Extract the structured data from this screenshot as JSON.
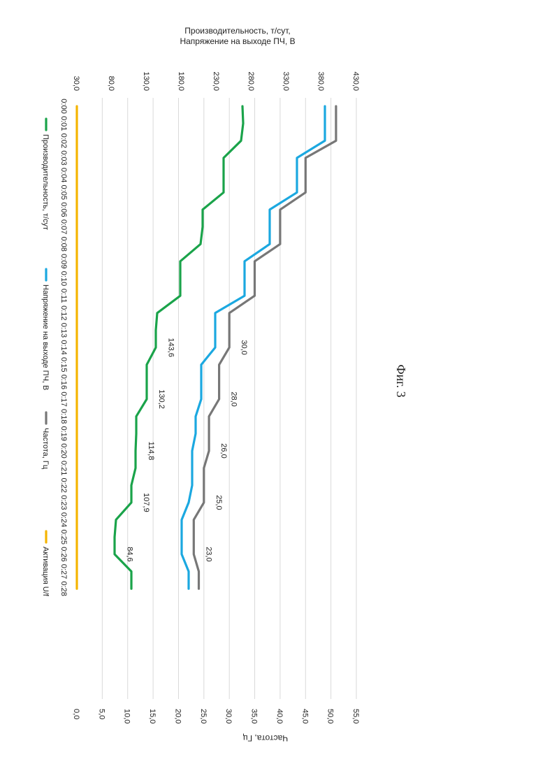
{
  "caption": "Фиг. 3",
  "chart_data": {
    "type": "line",
    "orientation": "rotated 90° clockwise on the page",
    "x": [
      "0:00",
      "0:01",
      "0:02",
      "0:03",
      "0:04",
      "0:05",
      "0:06",
      "0:07",
      "0:08",
      "0:09",
      "0:10",
      "0:11",
      "0:12",
      "0:13",
      "0:14",
      "0:15",
      "0:16",
      "0:17",
      "0:18",
      "0:19",
      "0:20",
      "0:21",
      "0:22",
      "0:23",
      "0:24",
      "0:25",
      "0:26",
      "0:27",
      "0:28"
    ],
    "y_primary": {
      "label": "Производительность, т/сут, Напряжение на выходе ПЧ, В",
      "lim": [
        30,
        430
      ],
      "ticks": [
        "430,0",
        "380,0",
        "330,0",
        "280,0",
        "230,0",
        "180,0",
        "130,0",
        "80,0",
        "30,0"
      ]
    },
    "y_secondary": {
      "label": "Частота, Гц",
      "lim": [
        0,
        55
      ],
      "ticks": [
        "55,0",
        "50,0",
        "45,0",
        "40,0",
        "35,0",
        "30,0",
        "25,0",
        "20,0",
        "15,0",
        "10,0",
        "5,0",
        "0,0"
      ]
    },
    "grid": true,
    "legend_position": "bottom",
    "series": [
      {
        "name": "Производительность, т/сут",
        "axis": "primary",
        "color": "#1aa34a",
        "values": [
          267,
          268,
          265,
          240,
          240,
          240,
          210,
          210,
          207,
          178,
          178,
          178,
          145,
          143,
          143,
          130,
          130,
          130,
          115,
          115,
          114,
          114,
          108,
          108,
          86,
          84,
          84,
          108,
          108
        ],
        "labels": [
          {
            "x": "0:14",
            "value": 143.6,
            "text": "143,6"
          },
          {
            "x": "0:17",
            "value": 130.2,
            "text": "130,2"
          },
          {
            "x": "0:20",
            "value": 114.8,
            "text": "114,8"
          },
          {
            "x": "0:23",
            "value": 107.9,
            "text": "107,9"
          },
          {
            "x": "0:26",
            "value": 84.6,
            "text": "84,6"
          }
        ]
      },
      {
        "name": "Напряжение на выходе ПЧ, В",
        "axis": "primary",
        "color": "#1ba8e0",
        "values": [
          385,
          385,
          385,
          345,
          345,
          345,
          306,
          306,
          306,
          270,
          270,
          270,
          228,
          228,
          228,
          208,
          208,
          208,
          200,
          200,
          195,
          195,
          195,
          190,
          180,
          180,
          180,
          190,
          190
        ]
      },
      {
        "name": "Частота, Гц",
        "axis": "secondary",
        "color": "#777777",
        "values": [
          51,
          51,
          51,
          45,
          45,
          45,
          40,
          40,
          40,
          35,
          35,
          35,
          30,
          30,
          30,
          28,
          28,
          28,
          26,
          26,
          26,
          25,
          25,
          25,
          23,
          23,
          23,
          24,
          24
        ],
        "labels": [
          {
            "x": "0:14",
            "value": 30.0,
            "text": "30,0"
          },
          {
            "x": "0:17",
            "value": 28.0,
            "text": "28,0"
          },
          {
            "x": "0:20",
            "value": 26.0,
            "text": "26,0"
          },
          {
            "x": "0:23",
            "value": 25.0,
            "text": "25,0"
          },
          {
            "x": "0:26",
            "value": 23.0,
            "text": "23,0"
          }
        ]
      },
      {
        "name": "Активация U/f",
        "axis": "secondary",
        "color": "#f5b400",
        "values": [
          0,
          0,
          0,
          0,
          0,
          0,
          0,
          0,
          0,
          0,
          0,
          0,
          0,
          0,
          0,
          0,
          0,
          0,
          0,
          0,
          0,
          0,
          0,
          0,
          0,
          0,
          0,
          0,
          0
        ]
      }
    ]
  }
}
